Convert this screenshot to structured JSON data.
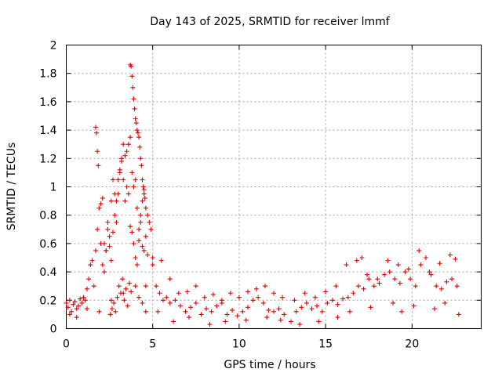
{
  "chart_data": {
    "type": "scatter",
    "title": "Day 143 of 2025, SRMTID for receiver lmmf",
    "xlabel": "GPS time / hours",
    "ylabel": "SRMTID / TECUs",
    "xlim": [
      0,
      24
    ],
    "ylim": [
      0,
      2
    ],
    "xticks": [
      0,
      5,
      10,
      15,
      20
    ],
    "yticks": [
      0,
      0.2,
      0.4,
      0.6,
      0.8,
      1,
      1.2,
      1.4,
      1.6,
      1.8,
      2
    ],
    "xtick_labels": [
      "0",
      "5",
      "10",
      "15",
      "20"
    ],
    "ytick_labels": [
      "0",
      "0.2",
      "0.4",
      "0.6",
      "0.8",
      "1",
      "1.2",
      "1.4",
      "1.6",
      "1.8",
      "2"
    ],
    "grid": true,
    "marker": "+",
    "color": "#e00000",
    "series": [
      {
        "name": "SRMTID",
        "x": [
          0.0,
          0.1,
          0.2,
          0.3,
          0.4,
          0.5,
          0.6,
          0.7,
          0.8,
          0.9,
          1.0,
          1.1,
          1.2,
          1.3,
          1.4,
          1.5,
          1.6,
          1.7,
          1.8,
          1.9,
          2.0,
          2.1,
          2.2,
          2.3,
          2.4,
          2.5,
          2.6,
          2.7,
          2.8,
          2.9,
          3.0,
          3.1,
          3.2,
          3.3,
          3.4,
          3.5,
          3.6,
          3.7,
          3.8,
          3.9,
          4.0,
          4.1,
          4.2,
          4.3,
          4.4,
          4.5,
          4.6,
          4.7,
          4.8,
          4.9,
          5.0,
          5.2,
          5.4,
          5.6,
          5.8,
          6.0,
          6.3,
          6.6,
          6.9,
          7.2,
          7.5,
          7.8,
          8.1,
          8.4,
          8.7,
          9.0,
          9.3,
          9.6,
          9.9,
          10.2,
          10.5,
          10.8,
          11.1,
          11.4,
          11.7,
          12.0,
          12.3,
          12.6,
          13.0,
          13.3,
          13.6,
          13.9,
          14.2,
          14.5,
          14.8,
          15.1,
          15.4,
          15.7,
          16.0,
          16.3,
          16.6,
          16.9,
          17.2,
          17.5,
          17.8,
          18.1,
          18.4,
          18.7,
          19.0,
          19.3,
          19.6,
          19.9,
          20.2,
          20.5,
          20.8,
          21.1,
          21.4,
          21.7,
          22.0,
          22.3,
          22.6,
          1.7,
          1.75,
          1.8,
          1.85,
          2.0,
          2.1,
          2.2,
          2.3,
          2.4,
          2.5,
          2.6,
          2.7,
          2.8,
          2.9,
          3.0,
          3.1,
          3.2,
          3.3,
          3.4,
          3.5,
          3.6,
          3.7,
          3.8,
          3.9,
          4.0,
          4.1,
          4.2,
          4.3,
          4.4,
          4.5,
          4.6,
          4.7,
          3.7,
          3.75,
          3.8,
          3.85,
          3.9,
          3.95,
          4.0,
          4.05,
          4.1,
          4.15,
          4.2,
          4.25,
          4.3,
          4.35,
          4.4,
          4.45,
          4.5,
          4.55,
          5.0,
          5.5,
          6.0,
          6.5,
          7.0,
          7.5,
          8.0,
          8.5,
          9.0,
          9.5,
          10.0,
          10.5,
          11.0,
          11.5,
          12.0,
          12.5,
          13.2,
          13.8,
          14.4,
          15.0,
          15.6,
          16.2,
          16.8,
          17.1,
          17.4,
          18.0,
          18.6,
          19.2,
          19.8,
          20.4,
          21.0,
          21.6,
          22.2,
          22.5,
          0.2,
          0.6,
          1.2,
          1.9,
          2.6,
          3.3,
          4.6,
          5.3,
          6.2,
          7.1,
          8.3,
          9.2,
          10.4,
          11.6,
          12.4,
          13.5,
          14.6,
          15.7,
          16.4,
          17.6,
          18.9,
          19.4,
          20.1,
          21.3,
          21.9,
          22.7,
          2.55,
          2.65,
          2.75,
          2.85,
          2.95,
          3.05,
          3.15,
          3.25,
          3.35,
          3.45,
          3.55,
          3.65,
          3.75,
          4.0,
          4.2,
          4.4,
          4.6
        ],
        "y": [
          0.18,
          0.15,
          0.2,
          0.12,
          0.17,
          0.19,
          0.14,
          0.16,
          0.21,
          0.18,
          0.22,
          0.2,
          0.28,
          0.35,
          0.45,
          0.48,
          0.3,
          0.55,
          0.7,
          0.85,
          0.6,
          0.45,
          0.4,
          0.55,
          0.7,
          0.65,
          0.9,
          1.05,
          0.8,
          0.75,
          0.95,
          1.1,
          1.2,
          1.05,
          0.9,
          1.25,
          1.3,
          1.35,
          1.1,
          1.0,
          1.05,
          0.85,
          0.7,
          0.8,
          0.9,
          0.95,
          0.85,
          0.8,
          0.75,
          0.7,
          0.5,
          0.3,
          0.25,
          0.2,
          0.22,
          0.18,
          0.2,
          0.16,
          0.12,
          0.15,
          0.18,
          0.1,
          0.14,
          0.12,
          0.16,
          0.18,
          0.1,
          0.13,
          0.09,
          0.12,
          0.15,
          0.2,
          0.22,
          0.18,
          0.13,
          0.12,
          0.14,
          0.1,
          0.05,
          0.12,
          0.15,
          0.18,
          0.14,
          0.16,
          0.12,
          0.18,
          0.2,
          0.17,
          0.21,
          0.22,
          0.25,
          0.3,
          0.28,
          0.35,
          0.3,
          0.32,
          0.38,
          0.4,
          0.35,
          0.32,
          0.4,
          0.35,
          0.3,
          0.45,
          0.5,
          0.38,
          0.3,
          0.28,
          0.33,
          0.35,
          0.3,
          1.42,
          1.38,
          1.25,
          1.15,
          0.88,
          0.92,
          0.6,
          0.55,
          0.75,
          0.58,
          0.48,
          0.68,
          0.95,
          0.9,
          1.05,
          1.12,
          1.18,
          1.3,
          1.22,
          1.0,
          0.95,
          0.72,
          0.68,
          0.6,
          0.5,
          0.45,
          0.62,
          0.75,
          0.58,
          0.55,
          0.65,
          0.52,
          1.86,
          1.85,
          1.78,
          1.7,
          1.62,
          1.55,
          1.48,
          1.45,
          1.4,
          1.38,
          1.35,
          1.28,
          1.2,
          1.15,
          1.05,
          1.0,
          0.98,
          0.92,
          0.45,
          0.48,
          0.35,
          0.25,
          0.26,
          0.3,
          0.22,
          0.24,
          0.2,
          0.25,
          0.22,
          0.26,
          0.28,
          0.3,
          0.25,
          0.22,
          0.2,
          0.25,
          0.22,
          0.26,
          0.3,
          0.45,
          0.48,
          0.5,
          0.38,
          0.35,
          0.48,
          0.45,
          0.42,
          0.55,
          0.4,
          0.46,
          0.52,
          0.49,
          0.1,
          0.08,
          0.14,
          0.12,
          0.2,
          0.25,
          0.3,
          0.12,
          0.05,
          0.08,
          0.03,
          0.05,
          0.06,
          0.08,
          0.06,
          0.03,
          0.05,
          0.08,
          0.12,
          0.15,
          0.18,
          0.12,
          0.16,
          0.14,
          0.18,
          0.1,
          0.1,
          0.14,
          0.18,
          0.12,
          0.22,
          0.3,
          0.25,
          0.35,
          0.2,
          0.28,
          0.16,
          0.32,
          0.26,
          0.3,
          0.22,
          0.18,
          0.12
        ]
      }
    ]
  }
}
